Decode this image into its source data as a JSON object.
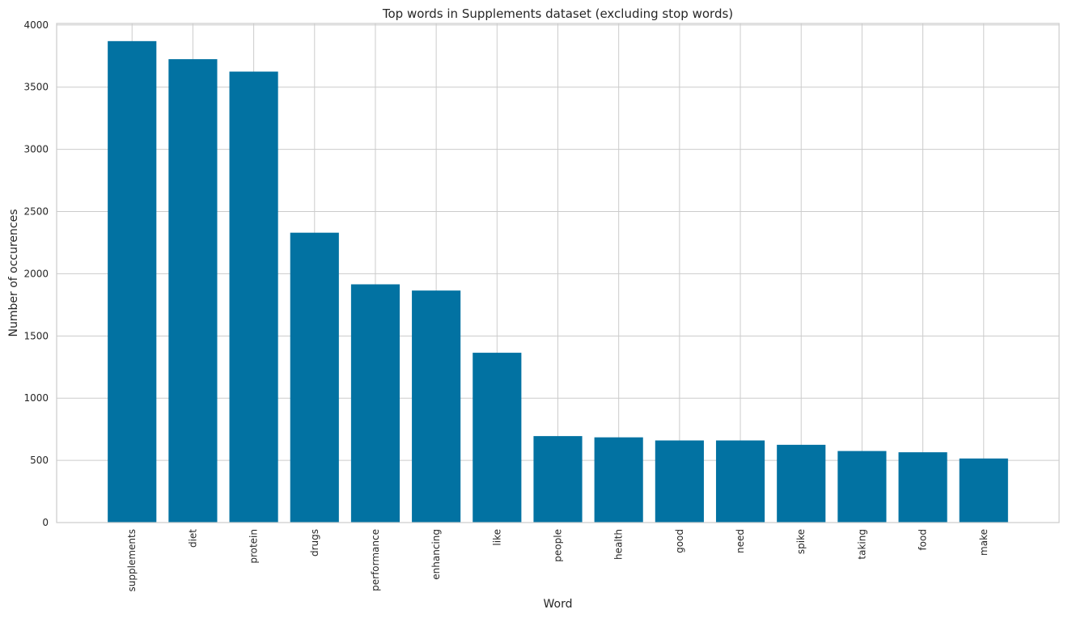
{
  "chart_data": {
    "type": "bar",
    "title": "Top words in Supplements dataset (excluding stop words)",
    "xlabel": "Word",
    "ylabel": "Number of occurences",
    "categories": [
      "supplements",
      "diet",
      "protein",
      "drugs",
      "performance",
      "enhancing",
      "like",
      "people",
      "health",
      "good",
      "need",
      "spike",
      "taking",
      "food",
      "make"
    ],
    "values": [
      3870,
      3725,
      3625,
      2330,
      1915,
      1865,
      1365,
      695,
      685,
      660,
      660,
      625,
      575,
      565,
      515
    ],
    "ylim": [
      0,
      4000
    ],
    "yticks": [
      "0",
      "500",
      "1000",
      "1500",
      "2000",
      "2500",
      "3000",
      "3500",
      "4000"
    ],
    "grid": true,
    "bar_color": "#0272a2",
    "grid_color": "#cccccc"
  }
}
